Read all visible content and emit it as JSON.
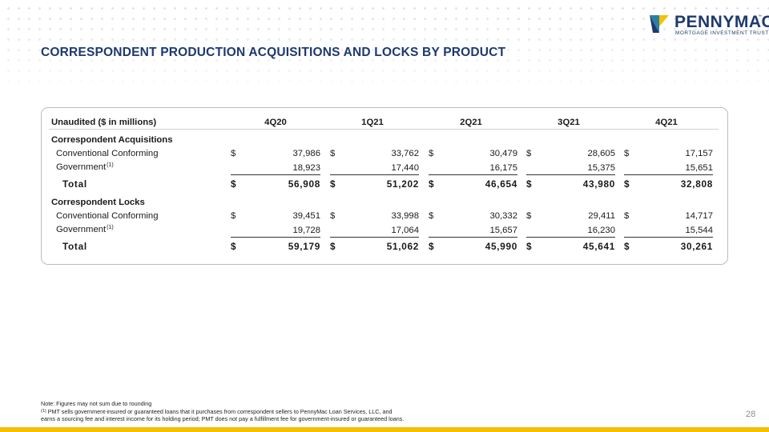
{
  "brand": {
    "name": "PENNYMAC",
    "tm": "™",
    "subtitle": "MORTGAGE INVESTMENT TRUST",
    "colors": {
      "navy": "#1d3a6e",
      "gold": "#f4c000",
      "teal": "#2a7fa8"
    }
  },
  "title": "CORRESPONDENT PRODUCTION ACQUISITIONS AND LOCKS BY PRODUCT",
  "table": {
    "header_label": "Unaudited ($ in millions)",
    "quarters": [
      "4Q20",
      "1Q21",
      "2Q21",
      "3Q21",
      "4Q21"
    ],
    "currency_symbol": "$",
    "sections": [
      {
        "title": "Correspondent Acquisitions",
        "rows": [
          {
            "label": "Conventional Conforming",
            "values": [
              "37,986",
              "33,762",
              "30,479",
              "28,605",
              "17,157"
            ]
          },
          {
            "label": "Government",
            "footnote_marker": "(1)",
            "values": [
              "18,923",
              "17,440",
              "16,175",
              "15,375",
              "15,651"
            ]
          }
        ],
        "total": {
          "label": "Total",
          "values": [
            "56,908",
            "51,202",
            "46,654",
            "43,980",
            "32,808"
          ]
        }
      },
      {
        "title": "Correspondent Locks",
        "rows": [
          {
            "label": "Conventional Conforming",
            "values": [
              "39,451",
              "33,998",
              "30,332",
              "29,411",
              "14,717"
            ]
          },
          {
            "label": "Government",
            "footnote_marker": "(1)",
            "values": [
              "19,728",
              "17,064",
              "15,657",
              "16,230",
              "15,544"
            ]
          }
        ],
        "total": {
          "label": "Total",
          "values": [
            "59,179",
            "51,062",
            "45,990",
            "45,641",
            "30,261"
          ]
        }
      }
    ]
  },
  "notes": {
    "line1": "Note: Figures may not sum due to rounding",
    "marker": "(1)",
    "line2": " PMT sells government-insured or guaranteed loans that it purchases from correspondent sellers to PennyMac Loan Services, LLC, and",
    "line3": "earns a sourcing fee and interest income for its holding period; PMT does not pay a fulfillment fee for government-insured or guaranteed loans."
  },
  "page_number": "28"
}
